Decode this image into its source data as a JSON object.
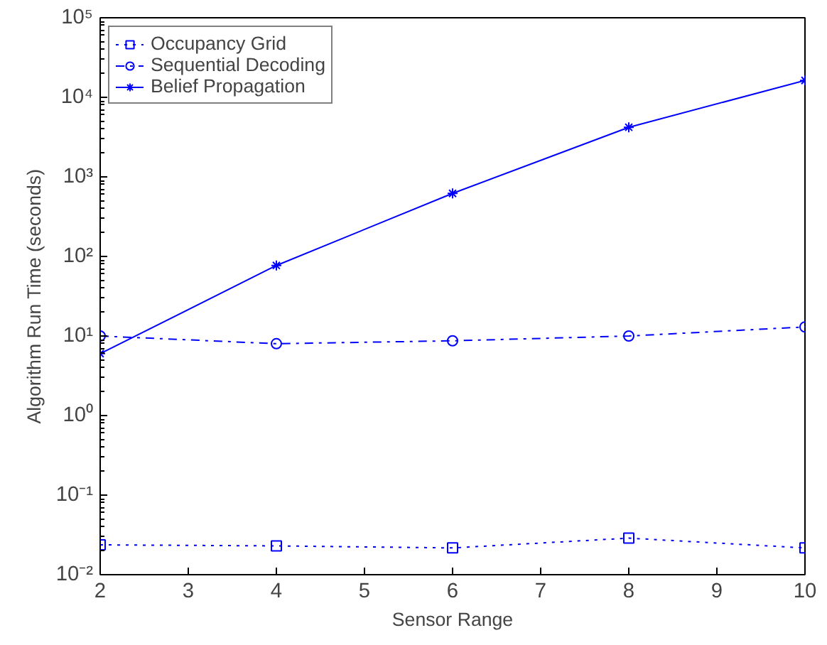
{
  "chart_data": {
    "type": "line",
    "xlabel": "Sensor Range",
    "ylabel": "Algorithm Run Time (seconds)",
    "x": [
      2,
      4,
      6,
      8,
      10
    ],
    "series": [
      {
        "name": "Occupancy Grid",
        "color": "#0000ff",
        "values": [
          0.0237,
          0.023,
          0.0217,
          0.0288,
          0.0217
        ],
        "marker": "square",
        "line_style": "dotted"
      },
      {
        "name": "Sequential Decoding",
        "color": "#0000ff",
        "values": [
          10,
          8.0,
          8.7,
          10,
          13
        ],
        "marker": "circle",
        "line_style": "dashdot"
      },
      {
        "name": "Belief Propagation",
        "color": "#0000ff",
        "values": [
          6.0,
          77,
          620,
          4200,
          16300
        ],
        "marker": "cross",
        "line_style": "solid"
      }
    ],
    "log": "y",
    "xlim": [
      2,
      10
    ],
    "ylim": [
      0.01,
      100000
    ],
    "xticks": [
      2,
      3,
      4,
      5,
      6,
      7,
      8,
      9,
      10
    ],
    "yticks": [
      {
        "value": 0.01,
        "label": "10⁻²"
      },
      {
        "value": 0.1,
        "label": "10⁻¹"
      },
      {
        "value": 1,
        "label": "10⁰"
      },
      {
        "value": 10,
        "label": "10¹"
      },
      {
        "value": 100,
        "label": "10²"
      },
      {
        "value": 1000,
        "label": "10³"
      },
      {
        "value": 10000,
        "label": "10⁴"
      },
      {
        "value": 100000,
        "label": "10⁵"
      }
    ],
    "grid": false,
    "legend": "top left"
  }
}
